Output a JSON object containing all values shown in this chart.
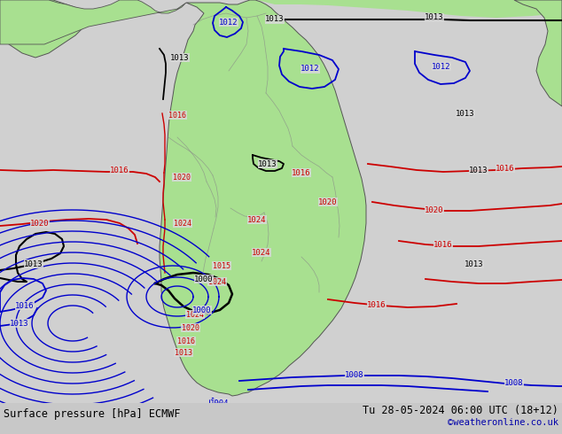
{
  "title_left": "Surface pressure [hPa] ECMWF",
  "title_right": "Tu 28-05-2024 06:00 UTC (18+12)",
  "credit": "©weatheronline.co.uk",
  "bg_color": "#d0d0d0",
  "ocean_color": "#d8d8d8",
  "land_color": "#a8e090",
  "land_edge": "#555555",
  "red": "#cc0000",
  "blue": "#0000cc",
  "black": "#000000",
  "gray": "#808080",
  "title_fs": 8.5,
  "credit_fs": 7.5,
  "label_fs": 6.5,
  "lbl_fs_sm": 6.0
}
